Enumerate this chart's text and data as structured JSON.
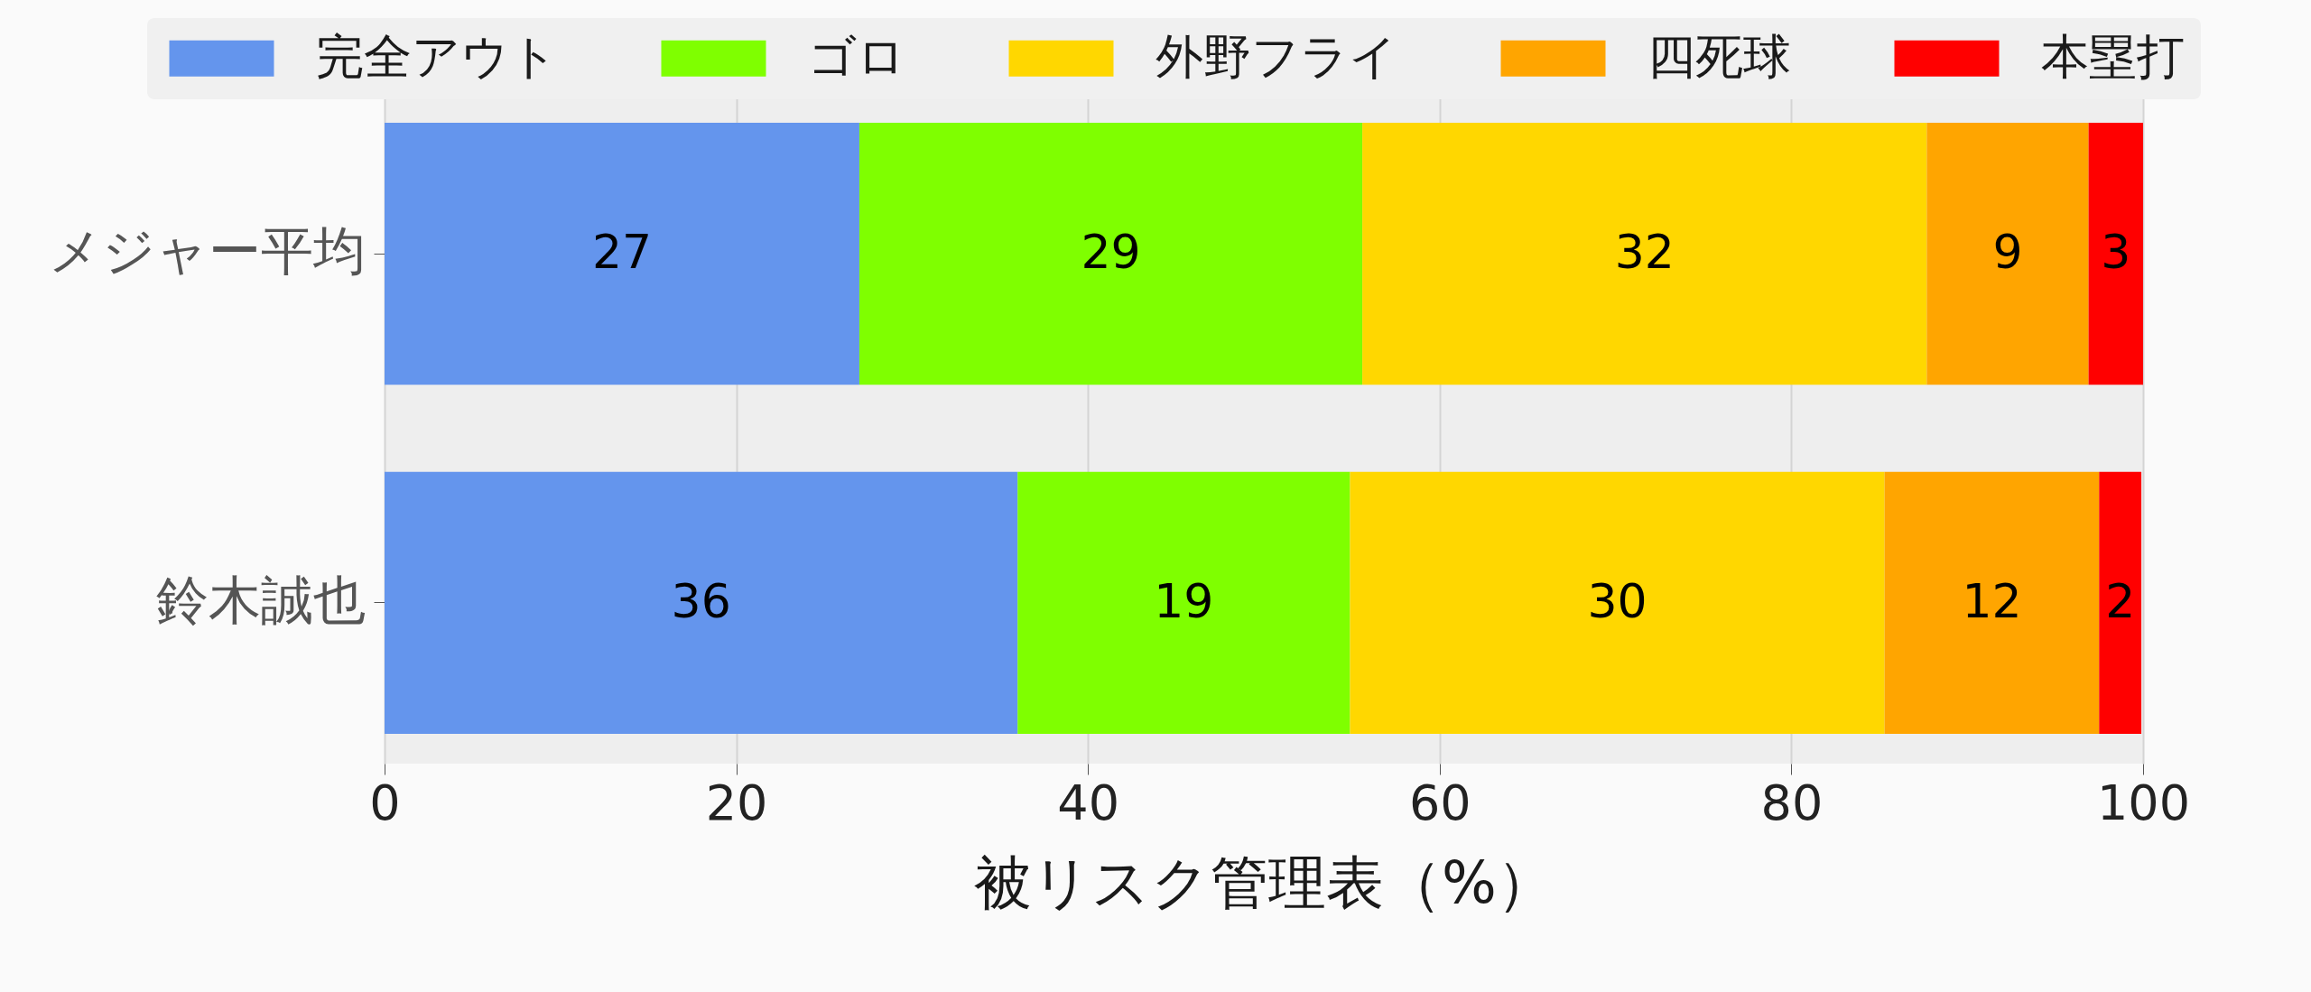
{
  "chart_data": {
    "type": "bar",
    "orientation": "horizontal",
    "stacked": true,
    "categories": [
      "メジャー平均",
      "鈴木誠也"
    ],
    "series": [
      {
        "name": "完全アウト",
        "color": "#6495ed",
        "values": [
          27,
          36
        ],
        "value_labels": [
          "27",
          "36"
        ]
      },
      {
        "name": "ゴロ",
        "color": "#7fff00",
        "values": [
          28.6,
          18.9
        ],
        "value_labels": [
          "29",
          "19"
        ]
      },
      {
        "name": "外野フライ",
        "color": "#ffd700",
        "values": [
          32.1,
          30.4
        ],
        "value_labels": [
          "32",
          "30"
        ]
      },
      {
        "name": "四死球",
        "color": "#ffa500",
        "values": [
          9.2,
          12.2
        ],
        "value_labels": [
          "9",
          "12"
        ]
      },
      {
        "name": "本塁打",
        "color": "#ff0000",
        "values": [
          3.1,
          2.4
        ],
        "value_labels": [
          "3",
          "2"
        ]
      }
    ],
    "xlabel": "被リスク管理表（%）",
    "xlim": [
      0,
      100
    ],
    "xticks": [
      0,
      20,
      40,
      60,
      80,
      100
    ],
    "grid": "x",
    "legend": "top"
  }
}
